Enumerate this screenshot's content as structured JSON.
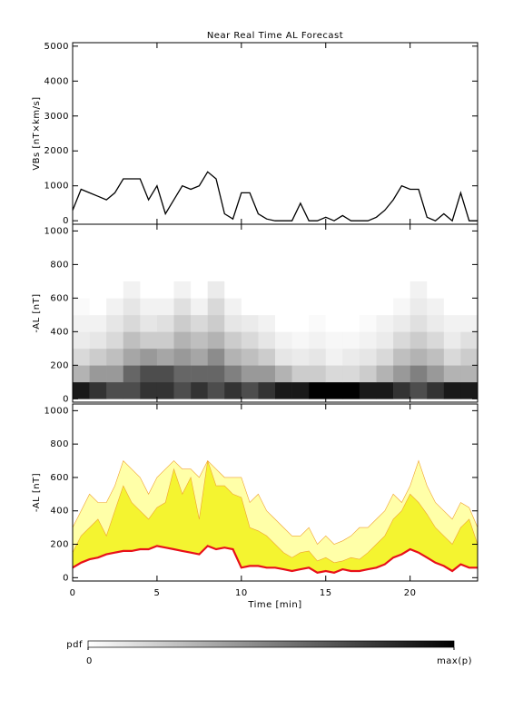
{
  "chart_data": [
    {
      "type": "line",
      "title": "Near Real Time AL Forecast",
      "ylabel": "VBs [nT×km/s]",
      "x": [
        0,
        0.5,
        1,
        1.5,
        2,
        2.5,
        3,
        3.5,
        4,
        4.5,
        5,
        5.5,
        6,
        6.5,
        7,
        7.5,
        8,
        8.5,
        9,
        9.5,
        10,
        10.5,
        11,
        11.5,
        12,
        12.5,
        13,
        13.5,
        14,
        14.5,
        15,
        15.5,
        16,
        16.5,
        17,
        17.5,
        18,
        18.5,
        19,
        19.5,
        20,
        20.5,
        21,
        21.5,
        22,
        22.5,
        23,
        23.5,
        24
      ],
      "values": [
        300,
        900,
        800,
        700,
        600,
        800,
        1200,
        1200,
        1200,
        600,
        1000,
        200,
        600,
        1000,
        900,
        1000,
        1400,
        1200,
        200,
        50,
        800,
        800,
        200,
        50,
        0,
        0,
        0,
        500,
        0,
        0,
        100,
        0,
        150,
        0,
        0,
        0,
        100,
        300,
        600,
        1000,
        900,
        900,
        100,
        0,
        200,
        0,
        800,
        0,
        0
      ],
      "color": "#000000",
      "xlim": [
        0,
        24
      ],
      "xticks": [
        0,
        5,
        10,
        15,
        20
      ],
      "ylim": [
        -100,
        5100
      ],
      "yticks": [
        0,
        1000,
        2000,
        3000,
        4000,
        5000
      ]
    },
    {
      "type": "heatmap",
      "ylabel": "-AL [nT]",
      "time_bins": [
        0,
        1,
        2,
        3,
        4,
        5,
        6,
        7,
        8,
        9,
        10,
        11,
        12,
        13,
        14,
        15,
        16,
        17,
        18,
        19,
        20,
        21,
        22,
        23,
        24
      ],
      "al_bins": [
        0,
        100,
        200,
        300,
        400,
        500,
        600,
        700
      ],
      "z": [
        [
          0.9,
          0.8,
          0.7,
          0.7,
          0.8,
          0.8,
          0.7,
          0.8,
          0.7,
          0.8,
          0.7,
          0.8,
          0.9,
          0.9,
          1,
          1,
          1,
          0.9,
          0.9,
          0.8,
          0.7,
          0.8,
          0.9,
          0.9
        ],
        [
          0.3,
          0.4,
          0.4,
          0.6,
          0.7,
          0.7,
          0.6,
          0.6,
          0.6,
          0.5,
          0.4,
          0.4,
          0.3,
          0.2,
          0.2,
          0.15,
          0.15,
          0.2,
          0.3,
          0.4,
          0.5,
          0.4,
          0.3,
          0.3
        ],
        [
          0.15,
          0.2,
          0.25,
          0.35,
          0.4,
          0.35,
          0.4,
          0.35,
          0.45,
          0.3,
          0.25,
          0.2,
          0.1,
          0.08,
          0.1,
          0.05,
          0.08,
          0.1,
          0.15,
          0.25,
          0.3,
          0.25,
          0.15,
          0.2
        ],
        [
          0.08,
          0.1,
          0.15,
          0.25,
          0.2,
          0.2,
          0.3,
          0.25,
          0.3,
          0.2,
          0.15,
          0.1,
          0.05,
          0.03,
          0.05,
          0.03,
          0.03,
          0.05,
          0.08,
          0.15,
          0.2,
          0.15,
          0.08,
          0.12
        ],
        [
          0.05,
          0.05,
          0.1,
          0.15,
          0.1,
          0.12,
          0.2,
          0.15,
          0.2,
          0.1,
          0.08,
          0.05,
          0,
          0,
          0.02,
          0,
          0,
          0.02,
          0.05,
          0.08,
          0.12,
          0.08,
          0.05,
          0.05
        ],
        [
          0.02,
          0,
          0.05,
          0.1,
          0.05,
          0.05,
          0.12,
          0.05,
          0.15,
          0.05,
          0,
          0,
          0,
          0,
          0,
          0,
          0,
          0,
          0,
          0.03,
          0.08,
          0.05,
          0,
          0
        ],
        [
          0,
          0,
          0,
          0.05,
          0,
          0,
          0.05,
          0,
          0.08,
          0,
          0,
          0,
          0,
          0,
          0,
          0,
          0,
          0,
          0,
          0,
          0.05,
          0,
          0,
          0
        ]
      ],
      "colorbar_label": "pdf",
      "zlim": [
        0,
        1
      ],
      "zticks": [
        0,
        {
          "value": 1,
          "label": "max(p)"
        }
      ],
      "xlim": [
        0,
        24
      ],
      "xticks": [
        0,
        5,
        10,
        15,
        20
      ],
      "ylim": [
        -20,
        1040
      ],
      "yticks": [
        0,
        200,
        400,
        600,
        800,
        1000
      ]
    },
    {
      "type": "band",
      "ylabel": "-AL [nT]",
      "xlabel": "Time [min]",
      "x": [
        0,
        0.5,
        1,
        1.5,
        2,
        2.5,
        3,
        3.5,
        4,
        4.5,
        5,
        5.5,
        6,
        6.5,
        7,
        7.5,
        8,
        8.5,
        9,
        9.5,
        10,
        10.5,
        11,
        11.5,
        12,
        12.5,
        13,
        13.5,
        14,
        14.5,
        15,
        15.5,
        16,
        16.5,
        17,
        17.5,
        18,
        18.5,
        19,
        19.5,
        20,
        20.5,
        21,
        21.5,
        22,
        22.5,
        23,
        23.5,
        24
      ],
      "series": [
        {
          "color": "#ffffa8",
          "values": [
            300,
            400,
            500,
            450,
            450,
            550,
            700,
            650,
            600,
            500,
            600,
            650,
            700,
            650,
            650,
            600,
            700,
            650,
            600,
            600,
            600,
            450,
            500,
            400,
            350,
            300,
            250,
            250,
            300,
            200,
            250,
            200,
            220,
            250,
            300,
            300,
            350,
            400,
            500,
            450,
            550,
            700,
            550,
            450,
            400,
            350,
            450,
            420,
            300
          ]
        },
        {
          "color": "#f4f430",
          "values": [
            150,
            250,
            300,
            350,
            250,
            400,
            550,
            450,
            400,
            350,
            420,
            450,
            650,
            500,
            600,
            350,
            700,
            550,
            550,
            500,
            480,
            300,
            280,
            250,
            200,
            150,
            120,
            150,
            160,
            100,
            120,
            90,
            100,
            120,
            110,
            150,
            200,
            250,
            350,
            400,
            500,
            450,
            380,
            300,
            250,
            200,
            300,
            350,
            200
          ]
        },
        {
          "color": "#e8101a",
          "values": [
            60,
            90,
            110,
            120,
            140,
            150,
            160,
            160,
            170,
            170,
            190,
            180,
            170,
            160,
            150,
            140,
            190,
            170,
            180,
            170,
            60,
            70,
            70,
            60,
            60,
            50,
            40,
            50,
            60,
            30,
            40,
            30,
            50,
            40,
            40,
            50,
            60,
            80,
            120,
            140,
            170,
            150,
            120,
            90,
            70,
            40,
            80,
            60,
            60
          ]
        }
      ],
      "xlim": [
        0,
        24
      ],
      "xticks": [
        0,
        5,
        10,
        15,
        20
      ],
      "ylim": [
        -20,
        1040
      ],
      "yticks": [
        0,
        200,
        400,
        600,
        800,
        1000
      ]
    }
  ]
}
